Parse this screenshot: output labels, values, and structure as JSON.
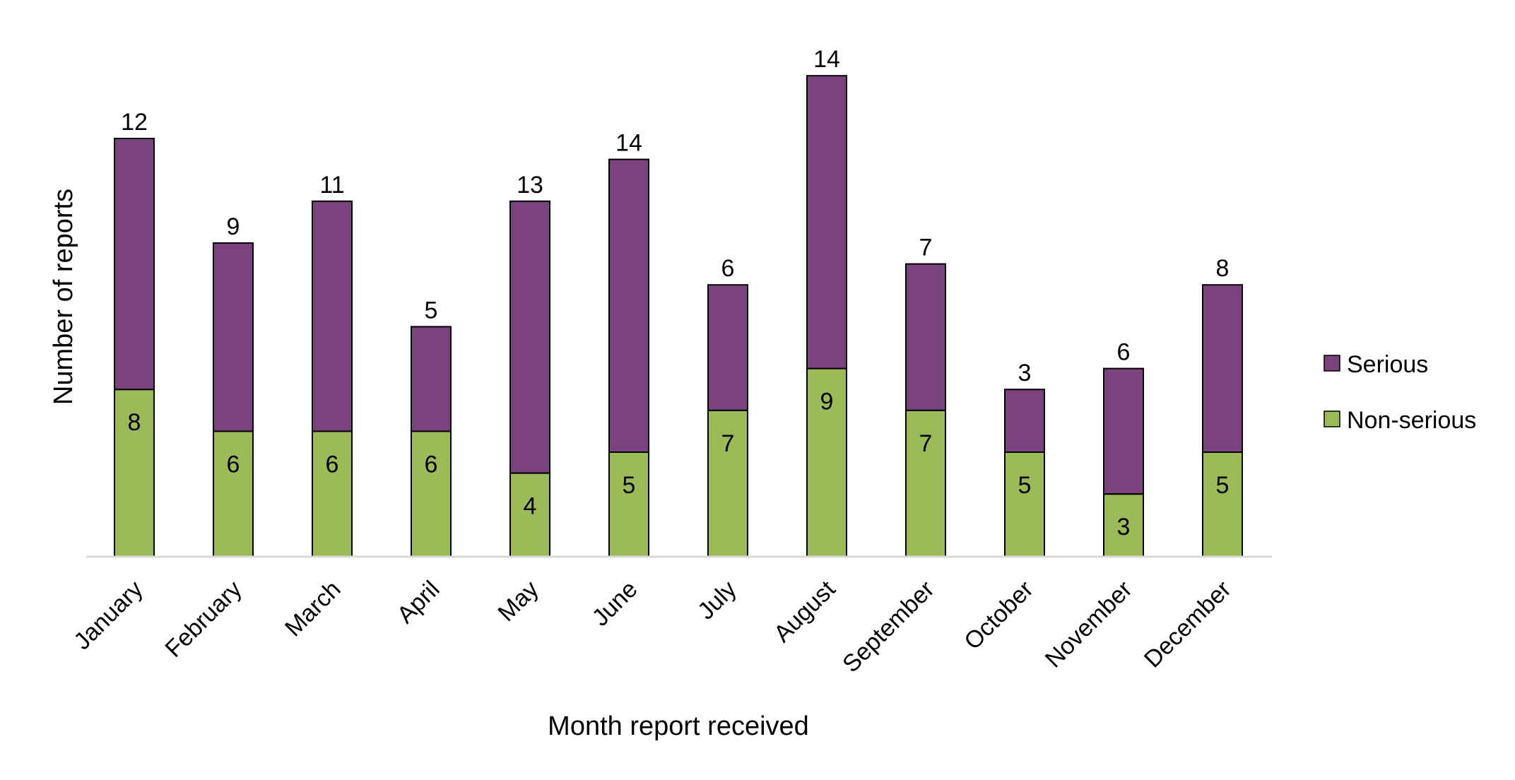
{
  "chart_data": {
    "type": "bar",
    "stacked": true,
    "categories": [
      "January",
      "February",
      "March",
      "April",
      "May",
      "June",
      "July",
      "August",
      "September",
      "October",
      "November",
      "December"
    ],
    "series": [
      {
        "name": "Non-serious",
        "color": "#9bbb59",
        "values": [
          8,
          6,
          6,
          6,
          4,
          5,
          7,
          9,
          7,
          5,
          3,
          5
        ]
      },
      {
        "name": "Serious",
        "color": "#7b437d",
        "values": [
          12,
          9,
          11,
          5,
          13,
          14,
          6,
          14,
          7,
          3,
          6,
          8
        ]
      }
    ],
    "xlabel": "Month report received",
    "ylabel": "Number of reports",
    "ylim": [
      0,
      23
    ],
    "grid": false,
    "legend": {
      "position": "right",
      "order": [
        "Serious",
        "Non-serious"
      ]
    },
    "colors": {
      "axis": "#d9d9d9",
      "bar_outline": "#000000"
    }
  }
}
